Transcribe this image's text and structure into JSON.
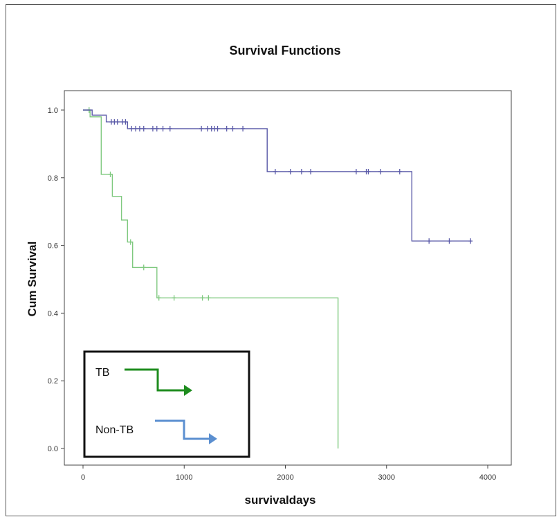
{
  "chart_data": {
    "type": "line",
    "subtype": "kaplan-meier-step",
    "title": "Survival Functions",
    "xlabel": "survivaldays",
    "ylabel": "Cum Survival",
    "xlim": [
      0,
      4000
    ],
    "ylim": [
      0.0,
      1.0
    ],
    "xticks": [
      "0",
      "1000",
      "2000",
      "3000",
      "4000"
    ],
    "yticks": [
      "0.0",
      "0.2",
      "0.4",
      "0.6",
      "0.8",
      "1.0"
    ],
    "grid": false,
    "legend_position": "bottom-left",
    "series": [
      {
        "name": "TB",
        "color": "#7fc97f",
        "legend_color": "#1e8c1e",
        "steps": [
          [
            0,
            1.0
          ],
          [
            70,
            1.0
          ],
          [
            70,
            0.98
          ],
          [
            180,
            0.98
          ],
          [
            180,
            0.81
          ],
          [
            290,
            0.81
          ],
          [
            290,
            0.745
          ],
          [
            380,
            0.745
          ],
          [
            380,
            0.675
          ],
          [
            440,
            0.675
          ],
          [
            440,
            0.61
          ],
          [
            490,
            0.61
          ],
          [
            490,
            0.535
          ],
          [
            730,
            0.535
          ],
          [
            730,
            0.445
          ],
          [
            2520,
            0.445
          ],
          [
            2520,
            0.0
          ]
        ],
        "censored": [
          [
            60,
            1.0
          ],
          [
            270,
            0.81
          ],
          [
            470,
            0.61
          ],
          [
            600,
            0.535
          ],
          [
            750,
            0.445
          ],
          [
            900,
            0.445
          ],
          [
            1180,
            0.445
          ],
          [
            1240,
            0.445
          ]
        ]
      },
      {
        "name": "Non-TB",
        "color": "#5a5aa8",
        "legend_color": "#5b8fd0",
        "steps": [
          [
            0,
            1.0
          ],
          [
            90,
            1.0
          ],
          [
            90,
            0.985
          ],
          [
            230,
            0.985
          ],
          [
            230,
            0.965
          ],
          [
            440,
            0.965
          ],
          [
            440,
            0.945
          ],
          [
            1820,
            0.945
          ],
          [
            1820,
            0.818
          ],
          [
            3250,
            0.818
          ],
          [
            3250,
            0.613
          ],
          [
            3840,
            0.613
          ]
        ],
        "censored": [
          [
            280,
            0.965
          ],
          [
            310,
            0.965
          ],
          [
            340,
            0.965
          ],
          [
            390,
            0.965
          ],
          [
            420,
            0.965
          ],
          [
            480,
            0.945
          ],
          [
            520,
            0.945
          ],
          [
            560,
            0.945
          ],
          [
            600,
            0.945
          ],
          [
            690,
            0.945
          ],
          [
            730,
            0.945
          ],
          [
            790,
            0.945
          ],
          [
            860,
            0.945
          ],
          [
            1170,
            0.945
          ],
          [
            1230,
            0.945
          ],
          [
            1270,
            0.945
          ],
          [
            1300,
            0.945
          ],
          [
            1330,
            0.945
          ],
          [
            1420,
            0.945
          ],
          [
            1480,
            0.945
          ],
          [
            1580,
            0.945
          ],
          [
            1900,
            0.818
          ],
          [
            2050,
            0.818
          ],
          [
            2160,
            0.818
          ],
          [
            2250,
            0.818
          ],
          [
            2700,
            0.818
          ],
          [
            2800,
            0.818
          ],
          [
            2820,
            0.818
          ],
          [
            2940,
            0.818
          ],
          [
            3130,
            0.818
          ],
          [
            3420,
            0.613
          ],
          [
            3620,
            0.613
          ],
          [
            3830,
            0.613
          ]
        ]
      }
    ],
    "legend": [
      {
        "label": "TB",
        "icon": "right-step-arrow-icon",
        "color": "#1e8c1e"
      },
      {
        "label": "Non-TB",
        "icon": "right-step-arrow-icon",
        "color": "#5b8fd0"
      }
    ]
  }
}
